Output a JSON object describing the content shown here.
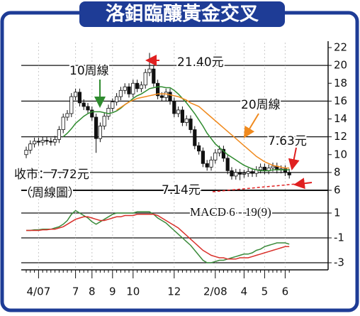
{
  "chart_data": {
    "type": "candlestick",
    "title": "洛鉬臨釀黃金交叉",
    "categories": [
      null,
      null,
      null,
      "4/07",
      null,
      null,
      null,
      null,
      null,
      null,
      null,
      null,
      "7",
      null,
      null,
      null,
      "8",
      null,
      null,
      null,
      null,
      "9",
      null,
      null,
      null,
      null,
      "10",
      null,
      null,
      null,
      null,
      null,
      null,
      null,
      null,
      null,
      "12",
      null,
      null,
      null,
      null,
      null,
      null,
      null,
      null,
      null,
      "2/08",
      null,
      null,
      null,
      null,
      null,
      null,
      "4",
      null,
      null,
      null,
      null,
      "5",
      null,
      null,
      null,
      null,
      "6",
      null
    ],
    "ylim": [
      6,
      22
    ],
    "yticks": [
      6,
      8,
      10,
      12,
      14,
      16,
      18,
      20,
      22
    ],
    "candles": {
      "open": [
        10.0,
        10.5,
        11.2,
        11.5,
        11.4,
        11.6,
        11.5,
        11.4,
        11.7,
        12.8,
        14.2,
        14.6,
        16.5,
        17.0,
        15.8,
        15.4,
        15.0,
        14.2,
        11.8,
        13.2,
        14.3,
        15.2,
        15.9,
        16.5,
        17.2,
        17.6,
        16.8,
        18.0,
        17.4,
        17.8,
        19.2,
        19.6,
        18.0,
        16.6,
        16.4,
        17.0,
        16.0,
        14.6,
        15.0,
        13.6,
        14.0,
        12.8,
        11.0,
        10.4,
        9.0,
        8.6,
        9.4,
        10.2,
        10.6,
        9.6,
        8.2,
        7.6,
        8.0,
        7.8,
        7.9,
        8.1,
        7.9,
        8.3,
        8.6,
        8.2,
        8.5,
        8.7,
        8.3,
        8.4,
        8.0
      ],
      "high": [
        10.9,
        11.6,
        11.9,
        11.9,
        12.0,
        12.0,
        11.9,
        12.1,
        13.2,
        14.6,
        15.0,
        16.9,
        17.4,
        17.4,
        16.2,
        15.8,
        15.4,
        14.6,
        13.6,
        14.7,
        15.6,
        16.3,
        16.9,
        17.6,
        18.0,
        18.0,
        18.4,
        18.4,
        18.2,
        19.6,
        21.4,
        20.0,
        18.4,
        17.0,
        17.4,
        17.4,
        16.4,
        15.4,
        15.4,
        14.4,
        14.4,
        13.2,
        11.4,
        10.8,
        9.4,
        9.8,
        10.6,
        11.0,
        11.0,
        10.0,
        8.6,
        8.4,
        8.4,
        8.3,
        8.5,
        8.5,
        8.7,
        9.0,
        9.0,
        8.9,
        9.1,
        9.1,
        8.8,
        8.8,
        8.4
      ],
      "low": [
        9.6,
        10.1,
        10.8,
        11.0,
        11.0,
        11.1,
        11.0,
        11.0,
        11.3,
        12.4,
        13.8,
        14.2,
        16.1,
        15.4,
        15.0,
        14.6,
        13.8,
        10.2,
        11.4,
        12.8,
        13.9,
        14.8,
        15.5,
        16.1,
        16.8,
        16.4,
        16.4,
        17.0,
        17.0,
        17.4,
        18.8,
        17.6,
        16.2,
        16.0,
        16.0,
        15.6,
        14.2,
        14.2,
        13.2,
        13.2,
        12.4,
        10.6,
        10.0,
        8.6,
        8.2,
        8.2,
        9.0,
        9.8,
        9.2,
        7.8,
        7.2,
        7.2,
        7.14,
        7.4,
        7.5,
        7.5,
        7.5,
        7.9,
        7.8,
        7.8,
        8.1,
        7.9,
        7.9,
        7.6,
        7.32
      ],
      "close": [
        10.5,
        11.2,
        11.5,
        11.4,
        11.6,
        11.5,
        11.4,
        11.7,
        12.8,
        14.2,
        14.6,
        16.5,
        17.0,
        15.8,
        15.4,
        15.0,
        14.2,
        11.8,
        13.2,
        14.3,
        15.2,
        15.9,
        16.5,
        17.2,
        17.6,
        16.8,
        18.0,
        17.4,
        17.8,
        19.2,
        19.6,
        18.0,
        16.6,
        16.4,
        17.0,
        16.0,
        14.6,
        15.0,
        13.6,
        14.0,
        12.8,
        11.0,
        10.4,
        9.0,
        8.6,
        9.4,
        10.2,
        10.6,
        9.6,
        8.2,
        7.6,
        8.0,
        7.8,
        7.9,
        8.1,
        7.9,
        8.3,
        8.6,
        8.2,
        8.5,
        8.7,
        8.3,
        8.4,
        8.0,
        7.72
      ]
    },
    "series": [
      {
        "name": "10周線",
        "color": "#2e8b2e",
        "values": [
          null,
          null,
          null,
          null,
          null,
          null,
          null,
          null,
          null,
          12.0,
          12.4,
          12.9,
          13.5,
          13.9,
          14.3,
          14.6,
          14.8,
          14.8,
          14.8,
          14.7,
          14.6,
          14.7,
          14.9,
          15.2,
          15.6,
          15.9,
          16.3,
          16.6,
          16.8,
          17.1,
          17.4,
          17.5,
          17.6,
          17.6,
          17.5,
          17.5,
          17.2,
          16.8,
          16.3,
          15.8,
          15.2,
          14.6,
          13.9,
          13.2,
          12.4,
          11.8,
          11.2,
          10.8,
          10.4,
          10.0,
          9.7,
          9.4,
          9.1,
          8.8,
          8.6,
          8.4,
          8.3,
          8.2,
          8.2,
          8.2,
          8.3,
          8.3,
          8.3,
          8.3,
          8.3
        ]
      },
      {
        "name": "20周線",
        "color": "#f08a1e",
        "values": [
          null,
          null,
          null,
          null,
          null,
          null,
          null,
          null,
          null,
          null,
          null,
          null,
          null,
          null,
          null,
          null,
          null,
          null,
          null,
          null,
          null,
          null,
          15.0,
          15.3,
          15.6,
          15.9,
          16.1,
          16.3,
          16.4,
          16.5,
          16.6,
          16.7,
          16.8,
          16.8,
          16.8,
          16.7,
          16.6,
          16.5,
          16.3,
          16.1,
          15.8,
          15.6,
          15.4,
          15.0,
          14.6,
          14.2,
          13.8,
          13.4,
          13.0,
          12.6,
          12.2,
          11.8,
          11.4,
          11.0,
          10.6,
          10.2,
          9.8,
          9.5,
          9.2,
          9.0,
          8.8,
          8.7,
          8.6,
          8.5,
          8.5
        ]
      }
    ],
    "macd": {
      "label": "MACD 6 - 19(9)",
      "ylim": [
        -3,
        1
      ],
      "yticks": [
        1,
        -1,
        -3
      ],
      "series": [
        {
          "color": "#3a8a3a",
          "values": [
            -0.4,
            -0.4,
            -0.35,
            -0.35,
            -0.3,
            -0.3,
            -0.3,
            -0.2,
            -0.1,
            0.1,
            0.4,
            0.9,
            1.2,
            1.0,
            0.8,
            0.6,
            0.3,
            0.1,
            0.3,
            0.5,
            0.7,
            0.9,
            1.0,
            1.0,
            1.0,
            1.0,
            1.0,
            1.1,
            1.1,
            1.1,
            1.1,
            0.9,
            0.6,
            0.4,
            0.2,
            -0.1,
            -0.4,
            -0.7,
            -1.0,
            -1.3,
            -1.6,
            -2.0,
            -2.4,
            -2.8,
            -3.0,
            -3.0,
            -2.9,
            -2.8,
            -2.8,
            -2.7,
            -2.6,
            -2.5,
            -2.4,
            -2.3,
            -2.3,
            -2.2,
            -2.0,
            -1.9,
            -1.7,
            -1.6,
            -1.5,
            -1.4,
            -1.4,
            -1.4,
            -1.5
          ]
        },
        {
          "color": "#d9302a",
          "values": [
            -0.4,
            -0.4,
            -0.4,
            -0.4,
            -0.35,
            -0.35,
            -0.3,
            -0.3,
            -0.2,
            -0.1,
            0.1,
            0.3,
            0.5,
            0.6,
            0.7,
            0.7,
            0.6,
            0.5,
            0.4,
            0.4,
            0.5,
            0.6,
            0.7,
            0.7,
            0.8,
            0.8,
            0.8,
            0.9,
            0.9,
            0.9,
            0.9,
            0.9,
            0.8,
            0.6,
            0.4,
            0.2,
            0.0,
            -0.2,
            -0.5,
            -0.8,
            -1.1,
            -1.4,
            -1.7,
            -2.0,
            -2.2,
            -2.4,
            -2.5,
            -2.6,
            -2.6,
            -2.7,
            -2.7,
            -2.7,
            -2.6,
            -2.6,
            -2.6,
            -2.5,
            -2.4,
            -2.3,
            -2.2,
            -2.1,
            -2.0,
            -1.9,
            -1.8,
            -1.7,
            -1.7
          ]
        }
      ]
    },
    "annotations": [
      "21.40元",
      "7.63元",
      "收市：7.72元",
      "（周線圖）",
      "7.14元"
    ]
  }
}
